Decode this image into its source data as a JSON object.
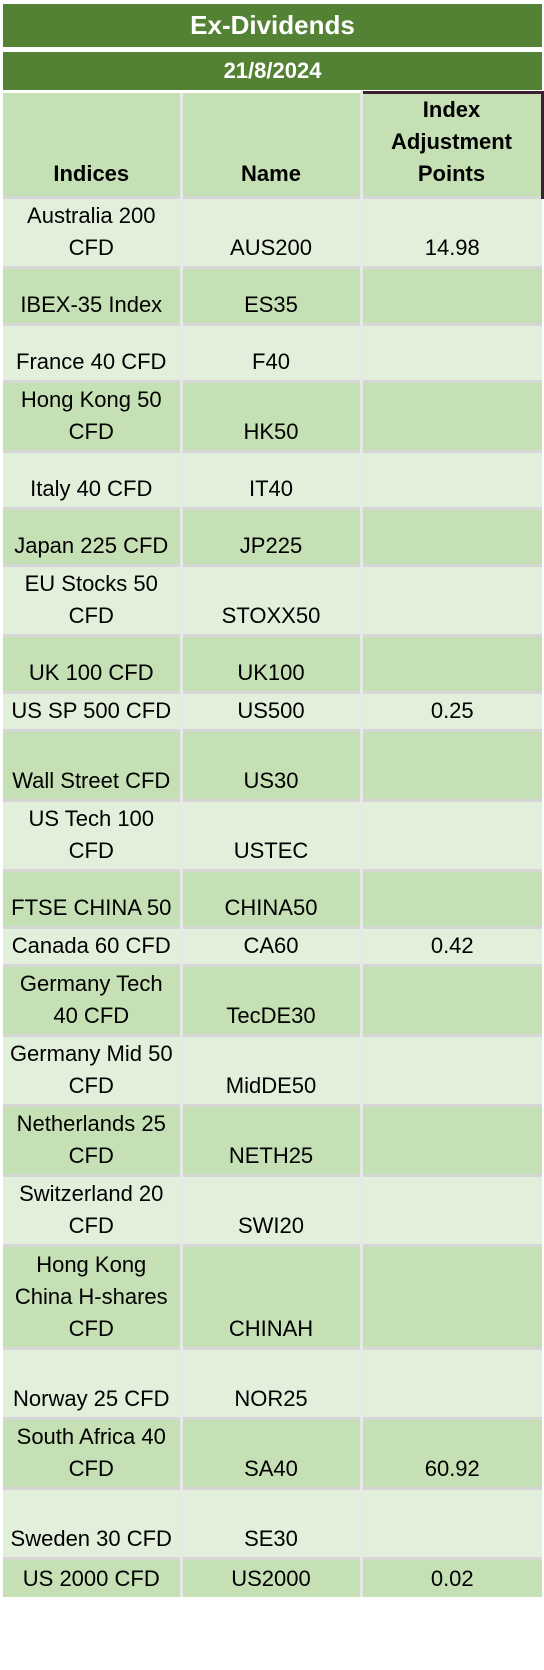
{
  "title": "Ex-Dividends",
  "date": "21/8/2024",
  "columns": {
    "indices": "Indices",
    "name": "Name",
    "adjustment": "Index Adjustment Points"
  },
  "rows": [
    {
      "index": "Australia 200 CFD",
      "name": "AUS200",
      "points": "14.98"
    },
    {
      "index": "IBEX-35 Index",
      "name": "ES35",
      "points": ""
    },
    {
      "index": "France 40 CFD",
      "name": "F40",
      "points": ""
    },
    {
      "index": "Hong Kong 50 CFD",
      "name": "HK50",
      "points": ""
    },
    {
      "index": "Italy 40 CFD",
      "name": "IT40",
      "points": ""
    },
    {
      "index": "Japan 225 CFD",
      "name": "JP225",
      "points": ""
    },
    {
      "index": "EU Stocks 50 CFD",
      "name": "STOXX50",
      "points": ""
    },
    {
      "index": "UK 100 CFD",
      "name": "UK100",
      "points": ""
    },
    {
      "index": "US SP 500 CFD",
      "name": "US500",
      "points": "0.25"
    },
    {
      "index": "Wall Street CFD",
      "name": "US30",
      "points": ""
    },
    {
      "index": "US Tech 100 CFD",
      "name": "USTEC",
      "points": ""
    },
    {
      "index": "FTSE CHINA 50",
      "name": "CHINA50",
      "points": ""
    },
    {
      "index": "Canada 60 CFD",
      "name": "CA60",
      "points": "0.42"
    },
    {
      "index": "Germany Tech 40 CFD",
      "name": "TecDE30",
      "points": ""
    },
    {
      "index": "Germany Mid 50 CFD",
      "name": "MidDE50",
      "points": ""
    },
    {
      "index": "Netherlands 25 CFD",
      "name": "NETH25",
      "points": ""
    },
    {
      "index": "Switzerland 20 CFD",
      "name": "SWI20",
      "points": ""
    },
    {
      "index": "Hong Kong China H-shares CFD",
      "name": "CHINAH",
      "points": ""
    },
    {
      "index": "Norway 25 CFD",
      "name": "NOR25",
      "points": ""
    },
    {
      "index": "South Africa 40 CFD",
      "name": "SA40",
      "points": "60.92"
    },
    {
      "index": "Sweden 30 CFD",
      "name": "SE30",
      "points": ""
    },
    {
      "index": "US 2000 CFD",
      "name": "US2000",
      "points": "0.02"
    }
  ],
  "colors": {
    "banner": "#548235",
    "row_light": "#e2efda",
    "row_dark": "#c5e0b4"
  }
}
